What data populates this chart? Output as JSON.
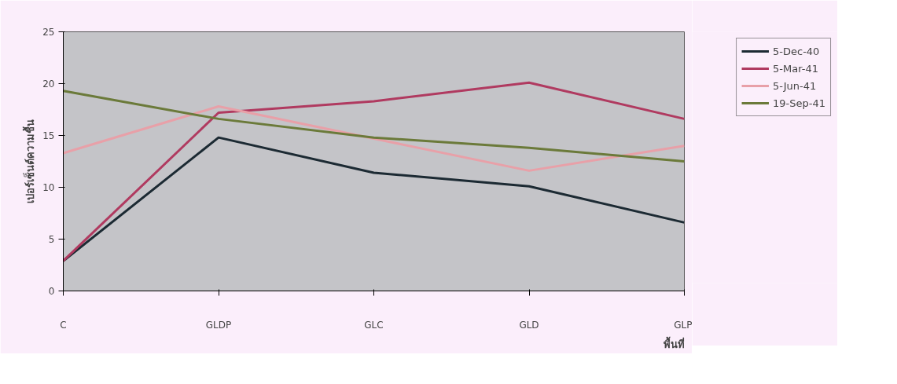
{
  "chart_data": {
    "type": "line",
    "xlabel": "พื้นที่",
    "ylabel": "เปอร์เซ็นต์ความชื้น",
    "categories": [
      "C",
      "GLDP",
      "GLC",
      "GLD",
      "GLP"
    ],
    "series": [
      {
        "name": "5-Dec-40",
        "color": "#1c2a33",
        "values": [
          2.9,
          14.8,
          11.4,
          10.1,
          6.6
        ]
      },
      {
        "name": "5-Mar-41",
        "color": "#b03a60",
        "values": [
          2.9,
          17.2,
          18.3,
          20.1,
          16.6
        ]
      },
      {
        "name": "5-Jun-41",
        "color": "#e8a0a8",
        "values": [
          13.3,
          17.8,
          14.7,
          11.6,
          14.0
        ]
      },
      {
        "name": "19-Sep-41",
        "color": "#6b7a3a",
        "values": [
          19.3,
          16.6,
          14.8,
          13.8,
          12.5
        ]
      }
    ],
    "ylim": [
      0,
      25
    ],
    "yticks": [
      0,
      5,
      10,
      15,
      20,
      25
    ],
    "grid": false,
    "legend": "top right",
    "marker": "none"
  }
}
